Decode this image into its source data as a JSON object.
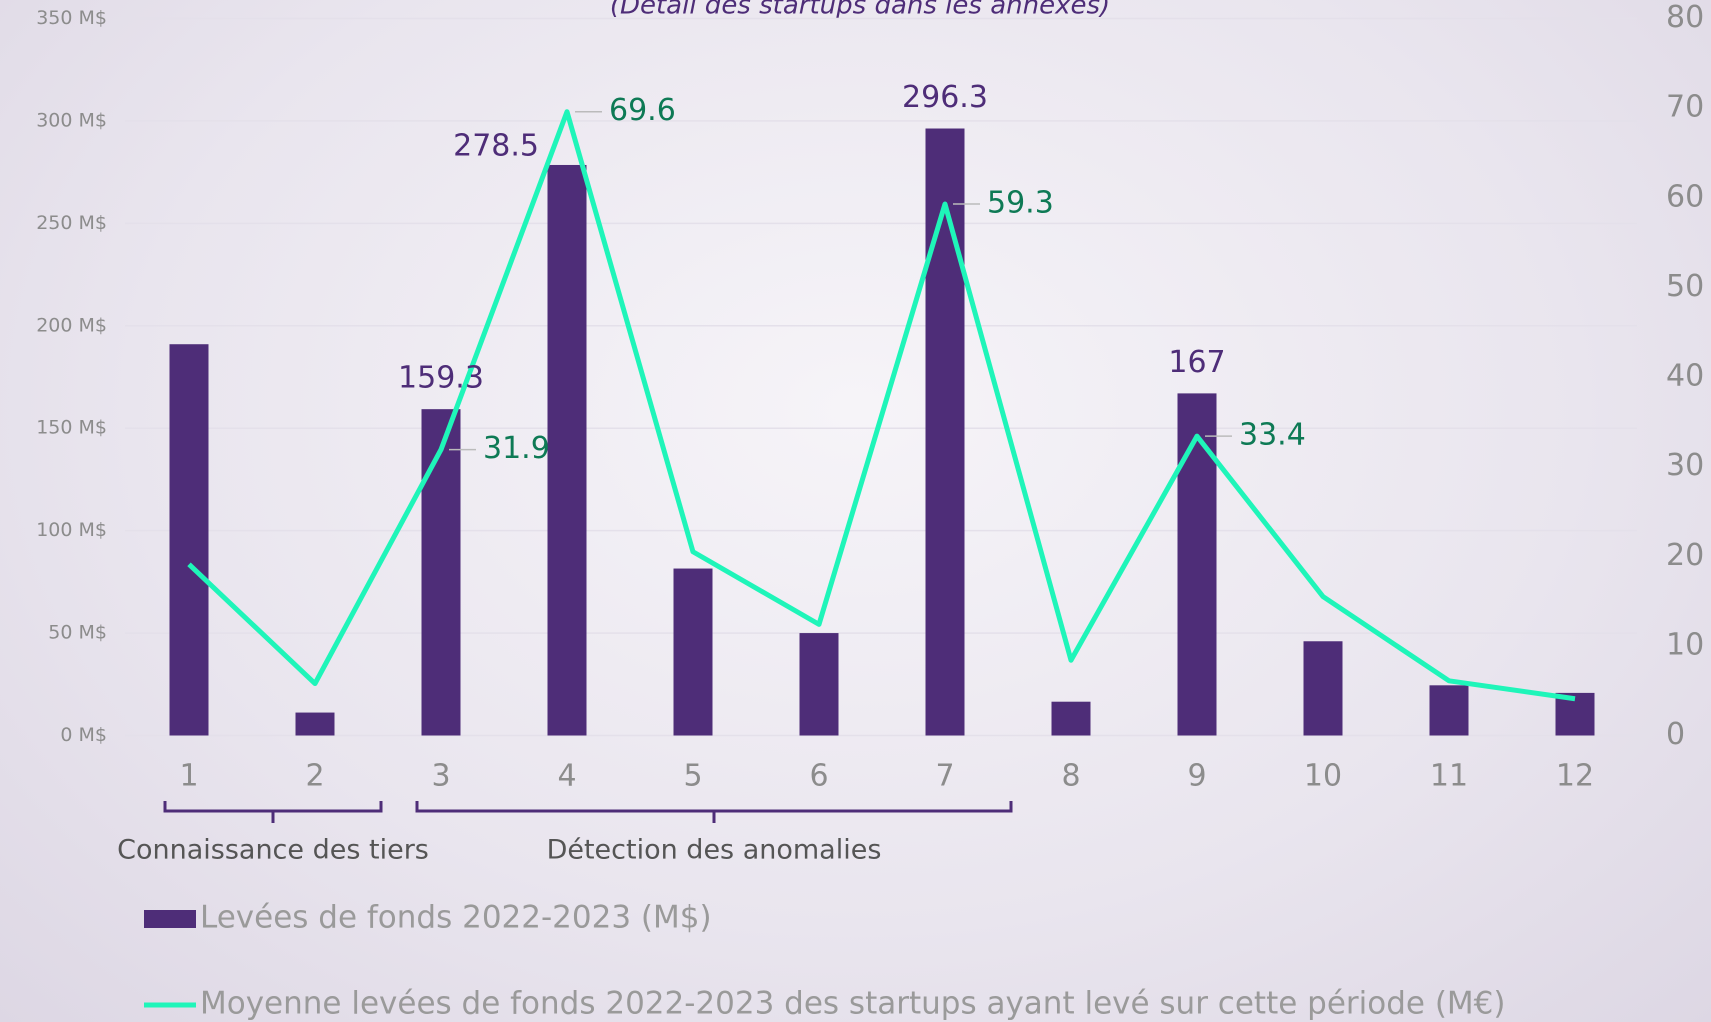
{
  "chart_data": {
    "type": "bar-line",
    "subtitle": "(Détail des startups dans les annexes)",
    "categories": [
      "1",
      "2",
      "3",
      "4",
      "5",
      "6",
      "7",
      "8",
      "9",
      "10",
      "11",
      "12"
    ],
    "series": [
      {
        "name": "Levées de fonds 2022-2023 (M$)",
        "type": "bar",
        "color": "#4e2d78",
        "label_color": "#4e2d78",
        "values": [
          191,
          11.2,
          159.3,
          278.5,
          81.5,
          50,
          296.3,
          16.5,
          167,
          46,
          24.5,
          20.8
        ],
        "value_labels": [
          null,
          null,
          "159.3",
          "278.5",
          null,
          null,
          "296.3",
          null,
          "167",
          null,
          null,
          null
        ]
      },
      {
        "name": "Moyenne levées de fonds 2022-2023 des startups ayant levé sur cette période (M€)",
        "type": "line",
        "axis": "y2",
        "color": "#1ff5b9",
        "label_color": "#0e7a55",
        "values": [
          19.1,
          5.8,
          31.9,
          69.6,
          20.5,
          12.4,
          59.3,
          8.4,
          33.4,
          15.5,
          6.1,
          4.1
        ],
        "value_labels": [
          null,
          null,
          "31.9",
          "69.6",
          null,
          null,
          "59.3",
          null,
          "33.4",
          null,
          null,
          null
        ]
      }
    ],
    "ylim": [
      0,
      350
    ],
    "yticks": [
      {
        "value": 0,
        "label": "0 M$"
      },
      {
        "value": 50,
        "label": "50 M$"
      },
      {
        "value": 100,
        "label": "100 M$"
      },
      {
        "value": 150,
        "label": "150 M$"
      },
      {
        "value": 200,
        "label": "200 M$"
      },
      {
        "value": 250,
        "label": "250 M$"
      },
      {
        "value": 300,
        "label": "300 M$"
      },
      {
        "value": 350,
        "label": "350 M$"
      }
    ],
    "y2lim": [
      0,
      80
    ],
    "y2ticks": [
      0,
      10,
      20,
      30,
      40,
      50,
      60,
      70,
      80
    ],
    "grid": true,
    "annotations": [
      {
        "text": "Connaissance des tiers",
        "span": [
          "1",
          "2"
        ]
      },
      {
        "text": "Détection des anomalies",
        "span": [
          "3",
          "7"
        ]
      }
    ],
    "legend": "bottom-left"
  }
}
